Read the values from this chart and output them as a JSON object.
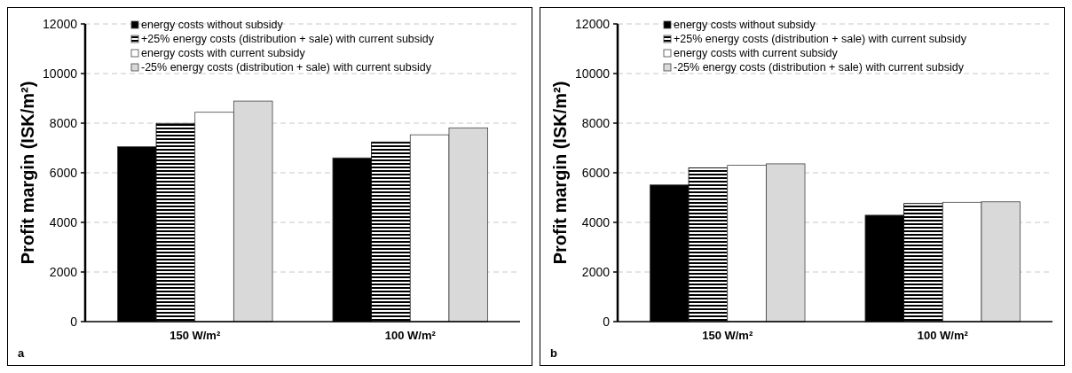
{
  "chart_data": [
    {
      "type": "bar",
      "ylabel": "Profit margin (ISK/m²)",
      "categories": [
        "150 W/m²",
        "100 W/m²"
      ],
      "ylim": [
        0,
        12000
      ],
      "yticks": [
        0,
        2000,
        4000,
        6000,
        8000,
        10000,
        12000
      ],
      "grid": "y",
      "legend": "top left",
      "annotations": [
        "a"
      ],
      "series": [
        {
          "name": "energy costs without subsidy",
          "color": "#000000",
          "values": [
            7050,
            6600
          ]
        },
        {
          "name": "+25% energy costs (distribution + sale) with current subsidy",
          "color": "#000000",
          "values": [
            7990,
            7240
          ]
        },
        {
          "name": "energy costs with current subsidy",
          "color": "#ffffff",
          "values": [
            8440,
            7530
          ]
        },
        {
          "name": "-25% energy costs (distribution + sale) with current subsidy",
          "color": "#d9d9d9",
          "values": [
            8890,
            7810
          ]
        }
      ]
    },
    {
      "type": "bar",
      "ylabel": "Profit margin (ISK/m²)",
      "categories": [
        "150 W/m²",
        "100 W/m²"
      ],
      "ylim": [
        0,
        12000
      ],
      "yticks": [
        0,
        2000,
        4000,
        6000,
        8000,
        10000,
        12000
      ],
      "grid": "y",
      "legend": "top left",
      "annotations": [
        "b"
      ],
      "series": [
        {
          "name": "energy costs without subsidy",
          "color": "#000000",
          "values": [
            5510,
            4290
          ]
        },
        {
          "name": "+25% energy costs (distribution + sale) with current subsidy",
          "color": "#000000",
          "values": [
            6200,
            4760
          ]
        },
        {
          "name": "energy costs with current subsidy",
          "color": "#ffffff",
          "values": [
            6300,
            4810
          ]
        },
        {
          "name": "-25% energy costs (distribution + sale) with current subsidy",
          "color": "#d9d9d9",
          "values": [
            6360,
            4830
          ]
        }
      ]
    }
  ]
}
